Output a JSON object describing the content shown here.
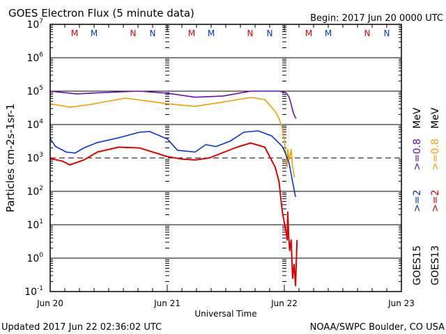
{
  "header": {
    "title": "GOES Electron Flux (5 minute data)",
    "begin": "Begin: 2017 Jun 20 0000 UTC"
  },
  "footer": {
    "updated": "Updated 2017 Jun 22 02:36:02 UTC",
    "source": "NOAA/SWPC Boulder, CO USA"
  },
  "colors": {
    "goes15_08": "#6a0dad",
    "goes13_08": "#f0a000",
    "goes15_2": "#0033dd",
    "goes13_2": "#e00000",
    "m_red": "#e00000",
    "n_blue": "#0033dd"
  },
  "legend": {
    "col1": {
      "sat": "GOES15",
      "e2": ">=2",
      "e08": ">=0.8",
      "unit": "MeV"
    },
    "col2": {
      "sat": "GOES13",
      "e2": ">=2",
      "e08": ">=0.8",
      "unit": "MeV"
    }
  },
  "markers": [
    {
      "label": "M",
      "hour": 5,
      "color": "red"
    },
    {
      "label": "M",
      "hour": 9,
      "color": "blue"
    },
    {
      "label": "N",
      "hour": 17,
      "color": "red"
    },
    {
      "label": "N",
      "hour": 21,
      "color": "blue"
    },
    {
      "label": "M",
      "hour": 29,
      "color": "red"
    },
    {
      "label": "M",
      "hour": 33,
      "color": "blue"
    },
    {
      "label": "N",
      "hour": 41,
      "color": "red"
    },
    {
      "label": "N",
      "hour": 45,
      "color": "blue"
    },
    {
      "label": "M",
      "hour": 53,
      "color": "red"
    },
    {
      "label": "M",
      "hour": 57,
      "color": "blue"
    },
    {
      "label": "N",
      "hour": 65,
      "color": "red"
    },
    {
      "label": "N",
      "hour": 69,
      "color": "blue"
    }
  ],
  "chart_data": {
    "type": "line",
    "title": "GOES Electron Flux (5 minute data)",
    "xlabel": "Universal Time",
    "ylabel": "Particles cm-2s-1sr-1",
    "xlim_hours": [
      0,
      72
    ],
    "ylim": [
      0.1,
      10000000
    ],
    "yscale": "log",
    "x_ticks": [
      {
        "hour": 0,
        "label": "Jun 20"
      },
      {
        "hour": 24,
        "label": "Jun 21"
      },
      {
        "hour": 48,
        "label": "Jun 22"
      },
      {
        "hour": 72,
        "label": "Jun 23"
      }
    ],
    "y_ticks": [
      {
        "exp": 7,
        "label": "10",
        "sup": "7"
      },
      {
        "exp": 6,
        "label": "10",
        "sup": "6"
      },
      {
        "exp": 5,
        "label": "10",
        "sup": "5"
      },
      {
        "exp": 4,
        "label": "10",
        "sup": "4"
      },
      {
        "exp": 3,
        "label": "10",
        "sup": "3"
      },
      {
        "exp": 2,
        "label": "10",
        "sup": "2"
      },
      {
        "exp": 1,
        "label": "10",
        "sup": "1"
      },
      {
        "exp": 0,
        "label": "10",
        "sup": "0"
      },
      {
        "exp": -1,
        "label": "10",
        "sup": "-1"
      }
    ],
    "threshold": 1000,
    "series": [
      {
        "name": "GOES15 >=0.8 MeV",
        "color": "#6a0dad",
        "points": [
          [
            0,
            100000.0
          ],
          [
            5.4,
            83000.0
          ],
          [
            12.6,
            93000.0
          ],
          [
            18.3,
            100000.0
          ],
          [
            24,
            87000.0
          ],
          [
            29.7,
            66000.0
          ],
          [
            35.4,
            71000.0
          ],
          [
            41.1,
            100000.0
          ],
          [
            46.9,
            100000.0
          ],
          [
            48.3,
            91000.0
          ],
          [
            49,
            66000.0
          ],
          [
            49.4,
            40000.0
          ],
          [
            49.9,
            21000.0
          ],
          [
            50.4,
            15000.0
          ]
        ]
      },
      {
        "name": "GOES13 >=0.8 MeV",
        "color": "#f0a000",
        "points": [
          [
            0,
            42000.0
          ],
          [
            4,
            33000.0
          ],
          [
            8.3,
            40000.0
          ],
          [
            15.4,
            62000.0
          ],
          [
            24,
            42000.0
          ],
          [
            29.7,
            35000.0
          ],
          [
            35.4,
            47000.0
          ],
          [
            41.1,
            65000.0
          ],
          [
            44,
            56000.0
          ],
          [
            46.1,
            25000.0
          ],
          [
            46.9,
            15500.0
          ],
          [
            47.6,
            7500.0
          ],
          [
            48,
            3600.0
          ],
          [
            48.3,
            1400.0
          ],
          [
            48.6,
            540
          ],
          [
            48.7,
            1800.0
          ],
          [
            49,
            870
          ],
          [
            49.4,
            1800.0
          ],
          [
            49.7,
            540
          ],
          [
            50.1,
            260
          ]
        ]
      },
      {
        "name": "GOES15 >=2 MeV",
        "color": "#0033dd",
        "points": [
          [
            0,
            3800.0
          ],
          [
            1.1,
            2200.0
          ],
          [
            3.3,
            1500.0
          ],
          [
            5.1,
            1400.0
          ],
          [
            6.9,
            2000.0
          ],
          [
            9.7,
            2900.0
          ],
          [
            14,
            4000.0
          ],
          [
            18.3,
            5900.0
          ],
          [
            20.4,
            6200.0
          ],
          [
            24,
            3700.0
          ],
          [
            26.1,
            1700.0
          ],
          [
            29.7,
            1500.0
          ],
          [
            31.9,
            2500.0
          ],
          [
            34,
            2200.0
          ],
          [
            36.9,
            3200.0
          ],
          [
            39.7,
            5900.0
          ],
          [
            42.6,
            6500.0
          ],
          [
            45.4,
            4600.0
          ],
          [
            47.6,
            2200.0
          ],
          [
            48.3,
            1300.0
          ],
          [
            49,
            680
          ],
          [
            49.7,
            190
          ],
          [
            50.3,
            68
          ]
        ]
      },
      {
        "name": "GOES13 >=2 MeV",
        "color": "#e00000",
        "points": [
          [
            0,
            960
          ],
          [
            2.6,
            800
          ],
          [
            4,
            620
          ],
          [
            6.9,
            870
          ],
          [
            9.7,
            1500.0
          ],
          [
            14,
            2100.0
          ],
          [
            18.3,
            2000.0
          ],
          [
            24,
            1100.0
          ],
          [
            26.9,
            930
          ],
          [
            29.7,
            870
          ],
          [
            32.6,
            1000.0
          ],
          [
            38.3,
            2100.0
          ],
          [
            41.1,
            2800.0
          ],
          [
            44,
            2100.0
          ],
          [
            46.1,
            540
          ],
          [
            46.9,
            200
          ],
          [
            47.6,
            24
          ],
          [
            48,
            11.5
          ],
          [
            48.3,
            7
          ],
          [
            48.6,
            3.5
          ],
          [
            48.7,
            24
          ],
          [
            48.9,
            4.4
          ],
          [
            49.1,
            1.7
          ],
          [
            49.4,
            3.5
          ],
          [
            49.7,
            0.25
          ],
          [
            50,
            0.65
          ],
          [
            50.3,
            0.15
          ],
          [
            50.6,
            3.5
          ]
        ]
      }
    ]
  }
}
